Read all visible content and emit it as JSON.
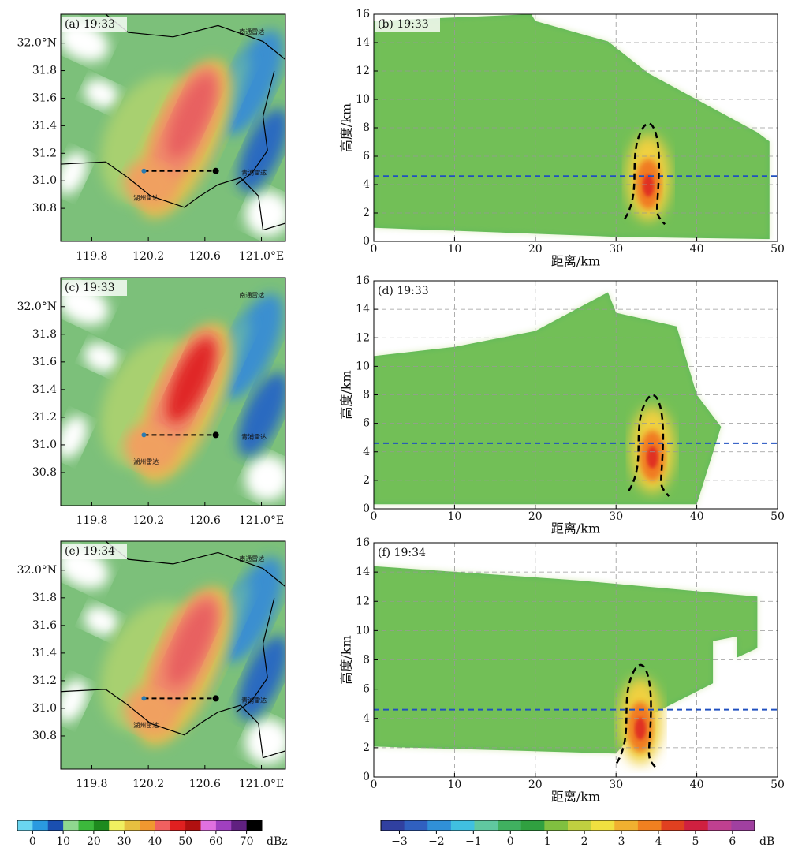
{
  "chart_data": [
    {
      "type": "map",
      "panel_label": "(a) 19:33",
      "annotations": [
        "南通雷达",
        "青浦雷达",
        "湖州雷达"
      ],
      "xlim": [
        119.58,
        121.17
      ],
      "xticks": [
        119.8,
        120.2,
        120.6,
        {
          "value": 121.0,
          "label": "121.0°E"
        }
      ],
      "ylim": [
        30.56,
        32.21
      ],
      "yticks": [
        {
          "value": 32.0,
          "label": "32.0°N"
        },
        31.8,
        31.6,
        31.4,
        31.2,
        {
          "value": 31.0,
          "label": "31.0"
        },
        30.8
      ]
    },
    {
      "type": "profile",
      "panel_label": "(b) 19:33",
      "xlabel": "距离/km",
      "ylabel": "高度/km",
      "xlim": [
        0,
        50
      ],
      "xticks": [
        0,
        10,
        20,
        30,
        40,
        50
      ],
      "ylim": [
        0,
        16
      ],
      "yticks": [
        0,
        2,
        4,
        6,
        8,
        10,
        12,
        14,
        16
      ],
      "grid": true
    },
    {
      "type": "map",
      "panel_label": "(c) 19:33",
      "annotations": [
        "南通雷达",
        "青浦雷达",
        "湖州雷达"
      ],
      "xlim": [
        119.58,
        121.17
      ],
      "xticks": [
        119.8,
        120.2,
        120.6,
        {
          "value": 121.0,
          "label": "121.0°E"
        }
      ],
      "ylim": [
        30.56,
        32.21
      ],
      "yticks": [
        {
          "value": 32.0,
          "label": "32.0°N"
        },
        31.8,
        31.6,
        31.4,
        31.2,
        {
          "value": 31.0,
          "label": "31.0"
        },
        30.8
      ]
    },
    {
      "type": "profile",
      "panel_label": "(d) 19:33",
      "xlabel": "距离/km",
      "ylabel": "高度/km",
      "xlim": [
        0,
        50
      ],
      "xticks": [
        0,
        10,
        20,
        30,
        40,
        50
      ],
      "ylim": [
        0,
        16
      ],
      "yticks": [
        0,
        2,
        4,
        6,
        8,
        10,
        12,
        14,
        16
      ],
      "grid": true
    },
    {
      "type": "map",
      "panel_label": "(e) 19:34",
      "annotations": [
        "南通雷达",
        "青浦雷达",
        "湖州雷达"
      ],
      "xlim": [
        119.58,
        121.17
      ],
      "xticks": [
        119.8,
        120.2,
        120.6,
        {
          "value": 121.0,
          "label": "121.0°E"
        }
      ],
      "ylim": [
        30.56,
        32.21
      ],
      "yticks": [
        {
          "value": 32.0,
          "label": "32.0°N"
        },
        31.8,
        31.6,
        31.4,
        31.2,
        {
          "value": 31.0,
          "label": "31.0"
        },
        30.8
      ]
    },
    {
      "type": "profile",
      "panel_label": "(f) 19:34",
      "xlabel": "距离/km",
      "ylabel": "高度/km",
      "xlim": [
        0,
        50
      ],
      "xticks": [
        0,
        10,
        20,
        30,
        40,
        50
      ],
      "ylim": [
        0,
        16
      ],
      "yticks": [
        0,
        2,
        4,
        6,
        8,
        10,
        12,
        14,
        16
      ],
      "grid": true
    },
    {
      "type": "colorbar",
      "label": "dBz",
      "lim": [
        -5,
        75
      ],
      "ticks": [
        0,
        10,
        20,
        30,
        40,
        50,
        60,
        70
      ],
      "colors": [
        "#6ad6f0",
        "#2a9ae0",
        "#1a4fb0",
        "#8fd88f",
        "#3cb83c",
        "#1e8a1e",
        "#f0f060",
        "#e6c040",
        "#f09830",
        "#f06060",
        "#e02020",
        "#b01010",
        "#e070e0",
        "#a040c0",
        "#602080",
        "#000000"
      ]
    },
    {
      "type": "colorbar",
      "label": "dB",
      "lim": [
        -3.5,
        6.6
      ],
      "ticks": [
        {
          "value": -3,
          "label": "−3"
        },
        {
          "value": -2,
          "label": "−2"
        },
        {
          "value": -1,
          "label": "−1"
        },
        0,
        1,
        2,
        3,
        4,
        5,
        6
      ],
      "colors": [
        "#3040a0",
        "#3060c0",
        "#3090d8",
        "#40c0e0",
        "#60c8a0",
        "#40b060",
        "#30a040",
        "#80c040",
        "#c0d040",
        "#f0e040",
        "#f0b030",
        "#f08020",
        "#e04020",
        "#d02040",
        "#c04090",
        "#a040a0"
      ]
    }
  ]
}
